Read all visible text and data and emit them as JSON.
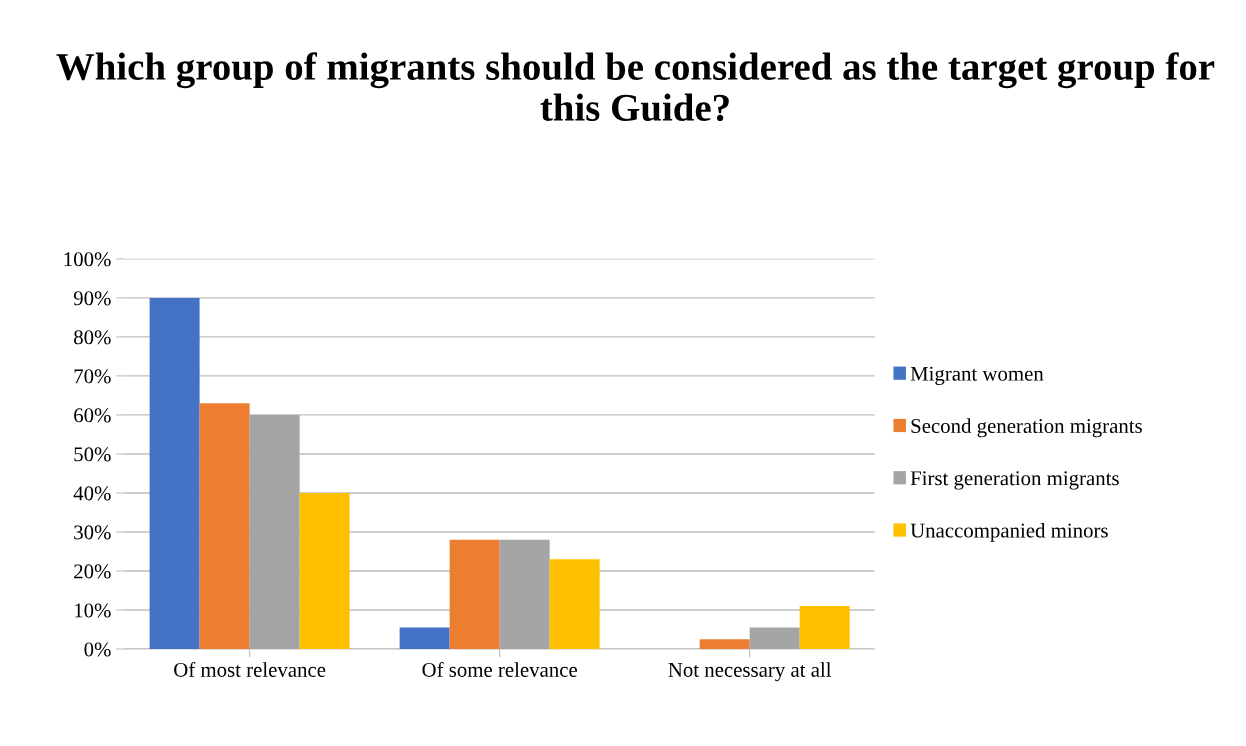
{
  "chart_data": {
    "type": "bar",
    "title": "Which group of migrants should be considered as the target group for this Guide?",
    "categories": [
      "Of most relevance",
      "Of some relevance",
      "Not necessary at all"
    ],
    "series": [
      {
        "name": "Migrant women",
        "color": "#4472c4",
        "values": [
          90,
          5.5,
          0
        ]
      },
      {
        "name": "Second generation migrants",
        "color": "#ed7d31",
        "values": [
          63,
          28,
          2.5
        ]
      },
      {
        "name": "First generation migrants",
        "color": "#a5a5a5",
        "values": [
          60,
          28,
          5.5
        ]
      },
      {
        "name": "Unaccompanied minors",
        "color": "#ffc000",
        "values": [
          40,
          23,
          11
        ]
      }
    ],
    "ylim": [
      0,
      100
    ],
    "yticks": [
      {
        "value": 0,
        "label": "0%"
      },
      {
        "value": 10,
        "label": "10%"
      },
      {
        "value": 20,
        "label": "20%"
      },
      {
        "value": 30,
        "label": "30%"
      },
      {
        "value": 40,
        "label": "40%"
      },
      {
        "value": 50,
        "label": "50%"
      },
      {
        "value": 60,
        "label": "60%"
      },
      {
        "value": 70,
        "label": "70%"
      },
      {
        "value": 80,
        "label": "80%"
      },
      {
        "value": 90,
        "label": "90%"
      },
      {
        "value": 100,
        "label": "100%"
      }
    ],
    "grid": "y",
    "legend": "right"
  }
}
